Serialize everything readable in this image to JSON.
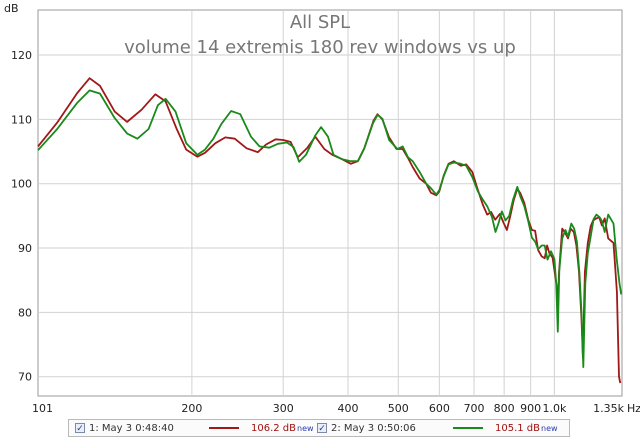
{
  "chart_data": {
    "type": "line",
    "title": "All SPL",
    "subtitle": "volume 14 extremis 180 rev windows vs up",
    "ylabel": "dB",
    "xunit": "Hz",
    "xscale": "log",
    "xlim": [
      101,
      1350
    ],
    "ylim": [
      67,
      127
    ],
    "yticks": [
      70,
      80,
      90,
      100,
      110,
      120
    ],
    "xticks": [
      {
        "value": 101,
        "label": "101"
      },
      {
        "value": 200,
        "label": "200"
      },
      {
        "value": 300,
        "label": "300"
      },
      {
        "value": 400,
        "label": "400"
      },
      {
        "value": 500,
        "label": "500"
      },
      {
        "value": 600,
        "label": "600"
      },
      {
        "value": 700,
        "label": "700"
      },
      {
        "value": 800,
        "label": "800"
      },
      {
        "value": 900,
        "label": "900"
      },
      {
        "value": 1000,
        "label": "1.0k"
      },
      {
        "value": 1350,
        "label": "1.35k"
      }
    ],
    "grid": true,
    "series": [
      {
        "name": "1: May 3 0:48:40",
        "color": "#a01818",
        "points": [
          [
            101,
            105.8
          ],
          [
            110,
            109.5
          ],
          [
            120,
            114
          ],
          [
            127,
            116.4
          ],
          [
            133,
            115.2
          ],
          [
            142,
            111.2
          ],
          [
            150,
            109.6
          ],
          [
            160,
            111.5
          ],
          [
            170,
            113.9
          ],
          [
            178,
            112.8
          ],
          [
            187,
            108.5
          ],
          [
            195,
            105.3
          ],
          [
            205,
            104.2
          ],
          [
            212,
            104.8
          ],
          [
            222,
            106.3
          ],
          [
            232,
            107.2
          ],
          [
            242,
            107
          ],
          [
            255,
            105.5
          ],
          [
            268,
            104.9
          ],
          [
            278,
            106.1
          ],
          [
            290,
            106.9
          ],
          [
            300,
            106.8
          ],
          [
            310,
            106.5
          ],
          [
            320,
            104.1
          ],
          [
            334,
            105.6
          ],
          [
            346,
            107.3
          ],
          [
            360,
            105.4
          ],
          [
            373,
            104.5
          ],
          [
            390,
            103.8
          ],
          [
            405,
            103.1
          ],
          [
            418,
            103.5
          ],
          [
            430,
            105.5
          ],
          [
            448,
            109.8
          ],
          [
            456,
            110.8
          ],
          [
            466,
            110
          ],
          [
            480,
            107.2
          ],
          [
            496,
            105.4
          ],
          [
            510,
            105.4
          ],
          [
            522,
            104
          ],
          [
            533,
            102.6
          ],
          [
            550,
            100.8
          ],
          [
            566,
            100
          ],
          [
            578,
            98.6
          ],
          [
            592,
            98.2
          ],
          [
            600,
            98.8
          ],
          [
            612,
            101.3
          ],
          [
            625,
            103.1
          ],
          [
            640,
            103.5
          ],
          [
            660,
            102.8
          ],
          [
            676,
            103
          ],
          [
            695,
            101.8
          ],
          [
            710,
            99.3
          ],
          [
            728,
            96.7
          ],
          [
            742,
            95.2
          ],
          [
            755,
            95.6
          ],
          [
            769,
            94.4
          ],
          [
            785,
            95.3
          ],
          [
            798,
            93.9
          ],
          [
            810,
            92.8
          ],
          [
            822,
            95
          ],
          [
            835,
            97.5
          ],
          [
            848,
            99.2
          ],
          [
            860,
            98.5
          ],
          [
            875,
            97
          ],
          [
            890,
            94.4
          ],
          [
            905,
            92.8
          ],
          [
            918,
            92.7
          ],
          [
            930,
            89.7
          ],
          [
            945,
            88.7
          ],
          [
            958,
            88.4
          ],
          [
            968,
            90.4
          ],
          [
            978,
            89.2
          ],
          [
            992,
            88.5
          ],
          [
            1010,
            84.2
          ],
          [
            1015,
            79.5
          ],
          [
            1020,
            86
          ],
          [
            1035,
            93
          ],
          [
            1050,
            92.3
          ],
          [
            1062,
            91.5
          ],
          [
            1075,
            93
          ],
          [
            1090,
            92.5
          ],
          [
            1102,
            90.5
          ],
          [
            1115,
            86.5
          ],
          [
            1128,
            79
          ],
          [
            1135,
            73
          ],
          [
            1145,
            86.3
          ],
          [
            1160,
            90.8
          ],
          [
            1175,
            93.4
          ],
          [
            1188,
            94.3
          ],
          [
            1205,
            94.6
          ],
          [
            1220,
            94.8
          ],
          [
            1235,
            93.5
          ],
          [
            1250,
            94.6
          ],
          [
            1270,
            91.5
          ],
          [
            1300,
            90.8
          ],
          [
            1320,
            83.2
          ],
          [
            1332,
            70
          ],
          [
            1340,
            69
          ]
        ],
        "legend_value": "106.2 dB",
        "legend_badge": "new"
      },
      {
        "name": "2: May 3 0:50:06",
        "color": "#1a8a1a",
        "points": [
          [
            101,
            105.2
          ],
          [
            110,
            108.5
          ],
          [
            120,
            112.5
          ],
          [
            127,
            114.5
          ],
          [
            133,
            114
          ],
          [
            142,
            110.2
          ],
          [
            150,
            107.8
          ],
          [
            157,
            107
          ],
          [
            165,
            108.5
          ],
          [
            172,
            112.2
          ],
          [
            178,
            113.2
          ],
          [
            186,
            111.2
          ],
          [
            195,
            106.3
          ],
          [
            205,
            104.5
          ],
          [
            212,
            105.3
          ],
          [
            220,
            107
          ],
          [
            228,
            109.3
          ],
          [
            238,
            111.3
          ],
          [
            248,
            110.8
          ],
          [
            260,
            107.3
          ],
          [
            270,
            105.8
          ],
          [
            282,
            105.6
          ],
          [
            293,
            106.2
          ],
          [
            305,
            106.4
          ],
          [
            314,
            105.7
          ],
          [
            322,
            103.4
          ],
          [
            332,
            104.5
          ],
          [
            346,
            107.5
          ],
          [
            355,
            108.8
          ],
          [
            366,
            107.3
          ],
          [
            375,
            104.5
          ],
          [
            390,
            103.8
          ],
          [
            405,
            103.5
          ],
          [
            418,
            103.5
          ],
          [
            430,
            105.5
          ],
          [
            447,
            109.4
          ],
          [
            456,
            110.7
          ],
          [
            466,
            110.1
          ],
          [
            480,
            106.8
          ],
          [
            498,
            105.4
          ],
          [
            510,
            105.8
          ],
          [
            522,
            104.1
          ],
          [
            533,
            103.5
          ],
          [
            550,
            101.8
          ],
          [
            566,
            100
          ],
          [
            578,
            99.3
          ],
          [
            592,
            98.3
          ],
          [
            600,
            99
          ],
          [
            612,
            101.2
          ],
          [
            625,
            103
          ],
          [
            640,
            103.3
          ],
          [
            660,
            103.1
          ],
          [
            676,
            102.8
          ],
          [
            695,
            101
          ],
          [
            712,
            98.8
          ],
          [
            728,
            97.5
          ],
          [
            742,
            96.5
          ],
          [
            758,
            94.8
          ],
          [
            770,
            92.5
          ],
          [
            780,
            93.8
          ],
          [
            792,
            95.7
          ],
          [
            805,
            94.3
          ],
          [
            818,
            95
          ],
          [
            832,
            97.5
          ],
          [
            848,
            99.5
          ],
          [
            860,
            98
          ],
          [
            875,
            96.5
          ],
          [
            890,
            94.2
          ],
          [
            905,
            91.6
          ],
          [
            918,
            91
          ],
          [
            930,
            89.8
          ],
          [
            945,
            90.4
          ],
          [
            958,
            90.4
          ],
          [
            970,
            88.2
          ],
          [
            985,
            89.5
          ],
          [
            1000,
            88.3
          ],
          [
            1008,
            84.5
          ],
          [
            1015,
            77
          ],
          [
            1022,
            86.5
          ],
          [
            1035,
            91.5
          ],
          [
            1050,
            92.8
          ],
          [
            1062,
            91.8
          ],
          [
            1078,
            93.8
          ],
          [
            1092,
            93
          ],
          [
            1105,
            91
          ],
          [
            1118,
            86
          ],
          [
            1128,
            80
          ],
          [
            1137,
            71.5
          ],
          [
            1147,
            84.5
          ],
          [
            1160,
            89.2
          ],
          [
            1175,
            91.8
          ],
          [
            1190,
            94.5
          ],
          [
            1205,
            95.2
          ],
          [
            1222,
            94.8
          ],
          [
            1235,
            94.2
          ],
          [
            1250,
            92.5
          ],
          [
            1270,
            95.2
          ],
          [
            1300,
            93.8
          ],
          [
            1320,
            88
          ],
          [
            1335,
            84.5
          ],
          [
            1345,
            82.8
          ]
        ],
        "legend_value": "105.1 dB",
        "legend_badge": "new"
      }
    ]
  },
  "legend": {
    "items": [
      {
        "label": "1: May 3 0:48:40",
        "value": "106.2 dB",
        "badge": "new",
        "checked": "✓"
      },
      {
        "label": "2: May 3 0:50:06",
        "value": "105.1 dB",
        "badge": "new",
        "checked": "✓"
      }
    ]
  }
}
